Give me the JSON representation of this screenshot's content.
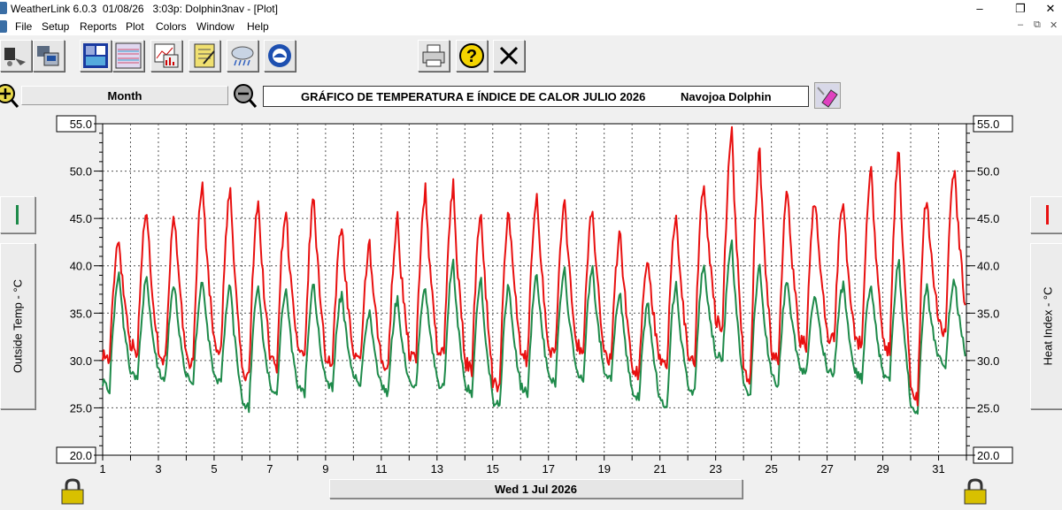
{
  "window": {
    "title": "WeatherLink 6.0.3  01/08/26   3:03p: Dolphin3nav - [Plot]",
    "controls": [
      "–",
      "❐",
      "✕"
    ]
  },
  "menu": [
    "File",
    "Setup",
    "Reports",
    "Plot",
    "Colors",
    "Window",
    "Help"
  ],
  "mdi_controls": [
    "–",
    "⧉",
    "✕"
  ],
  "toolbar": {
    "icons": [
      "download-icon",
      "station-icon",
      "summary-icon",
      "strip-chart-icon",
      "graph-icon",
      "notebook-icon",
      "weather-icon",
      "noaa-icon",
      "print-icon",
      "help-icon",
      "close-icon"
    ]
  },
  "controls": {
    "period": "Month",
    "zoom_in_icon": "zoom-in-icon",
    "zoom_out_icon": "zoom-out-icon",
    "eraser_icon": "eraser-icon"
  },
  "chart_title": {
    "text": "GRÁFICO DE TEMPERATURA E ÍNDICE DE CALOR JULIO 2026",
    "station": "Navojoa Dolphin"
  },
  "left_axis": {
    "title": "Outside Temp - °C",
    "color": "#1e8a4a"
  },
  "right_axis": {
    "title": "Heat Index - °C",
    "color": "#e81010"
  },
  "date_label": "Wed 1 Jul 2026",
  "lock_icons": [
    "lock-icon-left",
    "lock-icon-right"
  ],
  "chart_data": {
    "type": "line",
    "ylim": [
      20,
      55
    ],
    "yticks": [
      "20.0",
      "25.0",
      "30.0",
      "35.0",
      "40.0",
      "45.0",
      "50.0",
      "55.0"
    ],
    "xlim": [
      1,
      32
    ],
    "xticks": [
      "1",
      "3",
      "5",
      "7",
      "9",
      "11",
      "13",
      "15",
      "17",
      "19",
      "21",
      "23",
      "25",
      "27",
      "29",
      "31"
    ],
    "grid": true,
    "series": [
      {
        "name": "Heat Index - °C",
        "color": "#e81010",
        "daily_max": [
          43,
          46,
          45,
          49,
          48,
          47,
          46,
          47,
          44.5,
          42,
          45,
          48,
          48.5,
          46,
          46,
          47.5,
          46.5,
          46,
          43.5,
          41,
          45.5,
          49,
          54.5,
          52,
          48,
          47,
          47,
          50.5,
          52.5,
          47.5,
          50.5
        ],
        "daily_min": [
          30,
          31,
          30,
          29.5,
          31,
          28,
          29.5,
          30,
          29.5,
          29.5,
          29,
          30,
          30.5,
          29,
          27,
          30,
          30.5,
          31,
          30,
          28.5,
          29,
          30,
          33.5,
          28,
          30,
          31.5,
          32,
          31.5,
          31,
          26,
          33
        ]
      },
      {
        "name": "Outside Temp - °C",
        "color": "#1e8a4a",
        "daily_max": [
          39,
          38.5,
          38,
          38.5,
          38,
          38,
          37.5,
          38,
          37,
          35,
          36.5,
          38,
          40.5,
          38.5,
          38,
          39,
          39.5,
          40,
          37,
          36,
          38,
          40,
          42.5,
          40,
          38.5,
          37,
          38,
          38,
          40.5,
          38,
          38.5
        ],
        "daily_min": [
          27,
          28,
          28,
          27.5,
          27.5,
          25,
          26.5,
          26.5,
          27,
          27.5,
          26.5,
          27,
          27,
          26.5,
          25,
          26.5,
          27.5,
          28,
          28,
          26,
          25,
          26.5,
          30,
          26.5,
          27.5,
          28.5,
          28.5,
          28,
          28,
          24.5,
          29.5
        ]
      }
    ]
  }
}
